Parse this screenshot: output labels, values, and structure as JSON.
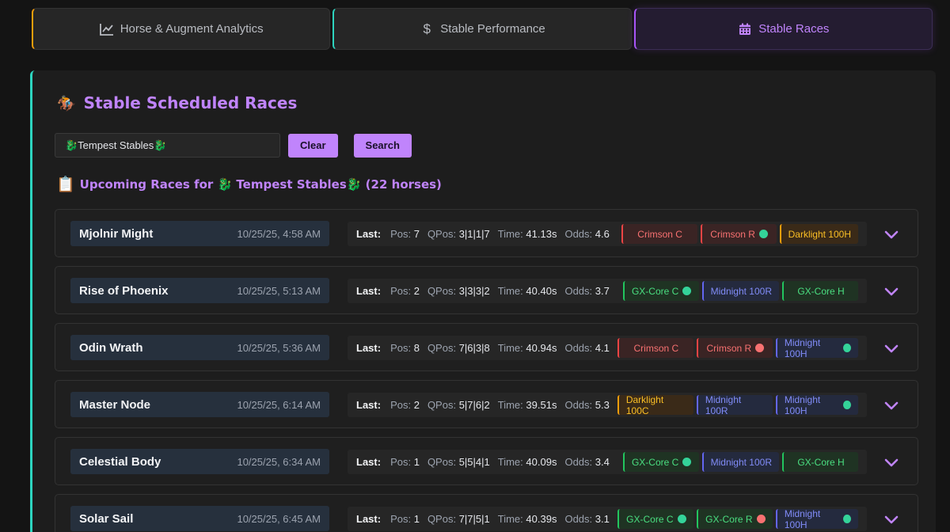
{
  "tabs": [
    {
      "label": "Horse & Augment Analytics",
      "icon": "chart-line-icon",
      "accent": "#f59e0b"
    },
    {
      "label": "Stable Performance",
      "icon": "dollar-icon",
      "accent": "#2dd4bf"
    },
    {
      "label": "Stable Races",
      "icon": "calendar-icon",
      "accent": "#a855f7",
      "active": true
    }
  ],
  "panel": {
    "emoji": "🏇",
    "title": "Stable Scheduled Races",
    "search_value": "🐉Tempest Stables🐉",
    "clear_label": "Clear",
    "search_label": "Search",
    "upcoming_emoji": "📋",
    "upcoming_text": "Upcoming Races for 🐉 Tempest Stables🐉 (22 horses)"
  },
  "labels": {
    "last": "Last:",
    "pos": "Pos:",
    "qpos": "QPos:",
    "time": "Time:",
    "odds": "Odds:"
  },
  "colors": {
    "accent": "#c084fc",
    "teal": "#2dd4bf",
    "red": "#ef4444",
    "orange": "#f59e0b",
    "blue": "#6366f1",
    "green": "#22c55e"
  },
  "races": [
    {
      "name": "Mjolnir Might",
      "time": "10/25/25, 4:58 AM",
      "pos": "7",
      "qpos": "3|1|1|7",
      "race_time": "41.13s",
      "odds": "4.6",
      "augments": [
        {
          "label": "Crimson C",
          "color": "red",
          "dot": ""
        },
        {
          "label": "Crimson R",
          "color": "red",
          "dot": "green"
        },
        {
          "label": "Darklight 100H",
          "color": "orange",
          "dot": ""
        }
      ]
    },
    {
      "name": "Rise of Phoenix",
      "time": "10/25/25, 5:13 AM",
      "pos": "2",
      "qpos": "3|3|3|2",
      "race_time": "40.40s",
      "odds": "3.7",
      "augments": [
        {
          "label": "GX-Core C",
          "color": "green",
          "dot": "green"
        },
        {
          "label": "Midnight 100R",
          "color": "blue",
          "dot": ""
        },
        {
          "label": "GX-Core H",
          "color": "green",
          "dot": ""
        }
      ]
    },
    {
      "name": "Odin Wrath",
      "time": "10/25/25, 5:36 AM",
      "pos": "8",
      "qpos": "7|6|3|8",
      "race_time": "40.94s",
      "odds": "4.1",
      "augments": [
        {
          "label": "Crimson C",
          "color": "red",
          "dot": ""
        },
        {
          "label": "Crimson R",
          "color": "red",
          "dot": "red"
        },
        {
          "label": "Midnight 100H",
          "color": "blue",
          "dot": "green"
        }
      ]
    },
    {
      "name": "Master Node",
      "time": "10/25/25, 6:14 AM",
      "pos": "2",
      "qpos": "5|7|6|2",
      "race_time": "39.51s",
      "odds": "5.3",
      "augments": [
        {
          "label": "Darklight 100C",
          "color": "orange",
          "dot": ""
        },
        {
          "label": "Midnight 100R",
          "color": "blue",
          "dot": ""
        },
        {
          "label": "Midnight 100H",
          "color": "blue",
          "dot": "green"
        }
      ]
    },
    {
      "name": "Celestial Body",
      "time": "10/25/25, 6:34 AM",
      "pos": "1",
      "qpos": "5|5|4|1",
      "race_time": "40.09s",
      "odds": "3.4",
      "augments": [
        {
          "label": "GX-Core C",
          "color": "green",
          "dot": "green"
        },
        {
          "label": "Midnight 100R",
          "color": "blue",
          "dot": ""
        },
        {
          "label": "GX-Core H",
          "color": "green",
          "dot": ""
        }
      ]
    },
    {
      "name": "Solar Sail",
      "time": "10/25/25, 6:45 AM",
      "pos": "1",
      "qpos": "7|7|5|1",
      "race_time": "40.39s",
      "odds": "3.1",
      "augments": [
        {
          "label": "GX-Core C",
          "color": "green",
          "dot": "green"
        },
        {
          "label": "GX-Core R",
          "color": "green",
          "dot": "red"
        },
        {
          "label": "Midnight 100H",
          "color": "blue",
          "dot": "green"
        }
      ]
    }
  ]
}
